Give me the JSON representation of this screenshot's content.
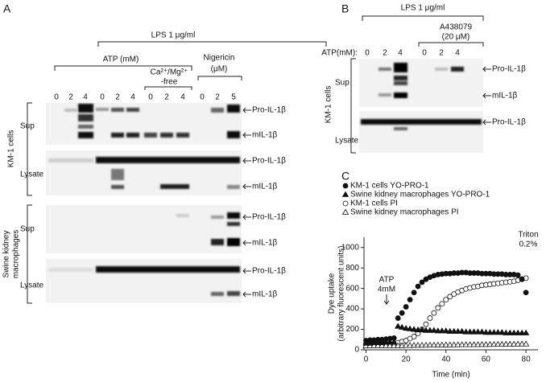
{
  "panel_a": {
    "label": "A",
    "lps": "LPS 1 μg/ml",
    "atp": "ATP (mM)",
    "ca_free": [
      "Ca²⁺/Mg²⁺",
      "-free"
    ],
    "nigericin": [
      "Nigericin",
      "(μM)"
    ],
    "lanes": [
      "0",
      "2",
      "4",
      "0",
      "2",
      "4",
      "0",
      "2",
      "4",
      "0",
      "2",
      "5"
    ],
    "groups": [
      {
        "label": [
          "KM-1 cells"
        ],
        "rows": [
          "Sup",
          "Lysate"
        ]
      },
      {
        "label": [
          "Swine kidney",
          "macrophages"
        ],
        "rows": [
          "Sup",
          "Lysate"
        ]
      }
    ],
    "bands": [
      "Pro-IL-1β",
      "mIL-1β",
      "Pro-IL-1β",
      "mIL-1β",
      "Pro-IL-1β",
      "mIL-1β",
      "Pro-IL-1β",
      "mIL-1β"
    ]
  },
  "panel_b": {
    "label": "B",
    "lps": "LPS 1 μg/ml",
    "inhibitor": [
      "A438079",
      "(20 μM)"
    ],
    "atp": "ATP(mM):",
    "lanes": [
      "0",
      "2",
      "4",
      "0",
      "2",
      "4"
    ],
    "group": "KM-1 cells",
    "rows": [
      "Sup",
      "Lysate"
    ],
    "bands": [
      "Pro-IL-1β",
      "mIL-1β",
      "Pro-IL-1β"
    ]
  },
  "panel_c": {
    "label": "C"
  },
  "chart_data": {
    "type": "scatter",
    "x_label": "Time (min)",
    "y_label": [
      "Dye uptake",
      "(arbitrary fluorescent units)"
    ],
    "annotations": [
      "ATP",
      "4mM",
      "Triton",
      "0.2%"
    ],
    "x": [
      0,
      2,
      4,
      6,
      8,
      10,
      12,
      14,
      16,
      18,
      20,
      22,
      24,
      26,
      28,
      30,
      32,
      34,
      36,
      38,
      40,
      42,
      44,
      46,
      48,
      50,
      52,
      54,
      56,
      58,
      60,
      62,
      64,
      66,
      68,
      70,
      72,
      74,
      76,
      78,
      80
    ],
    "series": [
      {
        "name": "KM-1 cells YO-PRO-1",
        "color": "#111111",
        "marker": "circle-filled",
        "values": [
          90,
          95,
          95,
          100,
          100,
          105,
          110,
          115,
          310,
          360,
          420,
          490,
          560,
          620,
          660,
          690,
          710,
          725,
          735,
          740,
          745,
          745,
          750,
          750,
          755,
          755,
          750,
          750,
          750,
          745,
          745,
          745,
          740,
          740,
          740,
          735,
          735,
          735,
          730,
          690,
          560
        ]
      },
      {
        "name": "Swine kidney macrophages YO-PRO-1",
        "color": "#111111",
        "marker": "triangle-filled",
        "values": [
          65,
          65,
          70,
          70,
          70,
          75,
          75,
          75,
          230,
          220,
          210,
          205,
          200,
          195,
          195,
          190,
          190,
          190,
          185,
          185,
          185,
          180,
          180,
          180,
          180,
          175,
          175,
          175,
          175,
          175,
          170,
          170,
          170,
          170,
          170,
          165,
          165,
          165,
          165,
          165,
          165
        ]
      },
      {
        "name": "KM-1 cells PI",
        "color": "#111111",
        "marker": "circle-open",
        "values": [
          60,
          60,
          60,
          60,
          62,
          62,
          62,
          62,
          70,
          80,
          90,
          110,
          130,
          160,
          200,
          250,
          310,
          360,
          410,
          450,
          490,
          520,
          545,
          565,
          580,
          595,
          605,
          615,
          620,
          630,
          635,
          640,
          645,
          650,
          655,
          660,
          665,
          670,
          680,
          690,
          700
        ]
      },
      {
        "name": "Swine kidney macrophages PI",
        "color": "#111111",
        "marker": "triangle-open",
        "values": [
          40,
          40,
          40,
          40,
          40,
          40,
          40,
          40,
          40,
          40,
          42,
          42,
          44,
          44,
          45,
          45,
          46,
          46,
          47,
          47,
          48,
          48,
          49,
          49,
          50,
          50,
          50,
          51,
          51,
          52,
          52,
          53,
          53,
          54,
          54,
          55,
          55,
          56,
          56,
          57,
          57
        ]
      }
    ],
    "xlim": [
      -1,
      86
    ],
    "ylim": [
      0,
      1100
    ],
    "xticks": [
      0,
      20,
      40,
      60,
      80
    ],
    "yticks": [
      0,
      200,
      400,
      600,
      800,
      1000
    ]
  }
}
